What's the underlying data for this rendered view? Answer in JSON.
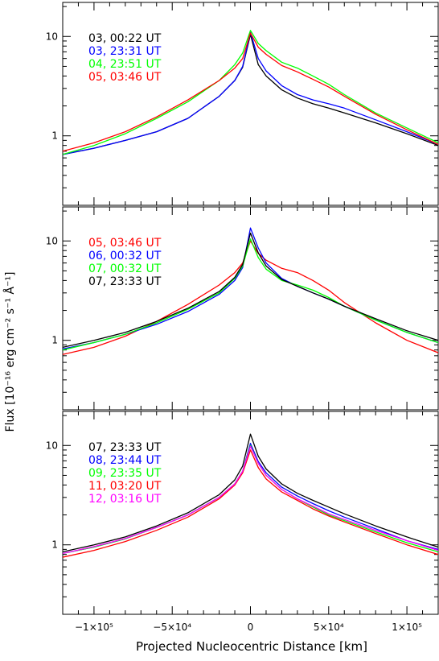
{
  "figure": {
    "ylabel": "Flux [10⁻¹⁶ erg cm⁻² s⁻¹ Å⁻¹]",
    "xlabel": "Projected Nucleocentric Distance [km]"
  },
  "x_ticks": [
    {
      "value": -100000,
      "label": "−1×10⁵"
    },
    {
      "value": -50000,
      "label": "−5×10⁴"
    },
    {
      "value": 0,
      "label": "0"
    },
    {
      "value": 50000,
      "label": "5×10⁴"
    },
    {
      "value": 100000,
      "label": "1×10⁵"
    }
  ],
  "y_ticks": [
    {
      "value": 1,
      "label": "1"
    },
    {
      "value": 10,
      "label": "10"
    }
  ],
  "colors": {
    "black": "#000000",
    "blue": "#0000ff",
    "green": "#00ff00",
    "red": "#ff0000",
    "magenta": "#ff00ff"
  },
  "chart_data": [
    {
      "type": "line",
      "yscale": "log",
      "xlim": [
        -120000,
        120000
      ],
      "ylim": [
        0.2,
        22
      ],
      "series": [
        {
          "name": "03, 00:22 UT",
          "color": "#000000",
          "x": [
            -120000,
            -100000,
            -80000,
            -60000,
            -40000,
            -20000,
            -10000,
            -5000,
            0,
            5000,
            10000,
            20000,
            30000,
            40000,
            50000,
            60000,
            80000,
            100000,
            120000
          ],
          "y": [
            0.65,
            0.75,
            0.9,
            1.1,
            1.5,
            2.5,
            3.6,
            4.9,
            10.5,
            5.2,
            4.0,
            2.9,
            2.4,
            2.1,
            1.9,
            1.7,
            1.35,
            1.05,
            0.8
          ]
        },
        {
          "name": "03, 23:31 UT",
          "color": "#0000ff",
          "x": [
            -120000,
            -100000,
            -80000,
            -60000,
            -40000,
            -20000,
            -10000,
            -5000,
            0,
            5000,
            10000,
            20000,
            30000,
            40000,
            50000,
            60000,
            80000,
            100000,
            120000
          ],
          "y": [
            0.65,
            0.75,
            0.9,
            1.1,
            1.5,
            2.5,
            3.6,
            5.0,
            11.0,
            6.0,
            4.5,
            3.2,
            2.6,
            2.3,
            2.1,
            1.9,
            1.45,
            1.1,
            0.82
          ]
        },
        {
          "name": "04, 23:51 UT",
          "color": "#00ff00",
          "x": [
            -120000,
            -100000,
            -80000,
            -60000,
            -40000,
            -20000,
            -10000,
            -5000,
            0,
            5000,
            10000,
            20000,
            30000,
            40000,
            50000,
            60000,
            80000,
            100000,
            120000
          ],
          "y": [
            0.65,
            0.8,
            1.05,
            1.5,
            2.2,
            3.6,
            5.2,
            6.8,
            11.5,
            8.5,
            7.2,
            5.5,
            4.8,
            4.0,
            3.3,
            2.6,
            1.7,
            1.2,
            0.85
          ]
        },
        {
          "name": "05, 03:46 UT",
          "color": "#ff0000",
          "x": [
            -120000,
            -100000,
            -80000,
            -60000,
            -40000,
            -20000,
            -10000,
            -5000,
            0,
            5000,
            10000,
            20000,
            30000,
            40000,
            50000,
            60000,
            80000,
            100000,
            120000
          ],
          "y": [
            0.7,
            0.85,
            1.1,
            1.55,
            2.3,
            3.6,
            4.8,
            6.0,
            10.8,
            7.8,
            6.6,
            5.1,
            4.4,
            3.7,
            3.1,
            2.5,
            1.65,
            1.15,
            0.82
          ]
        }
      ]
    },
    {
      "type": "line",
      "yscale": "log",
      "xlim": [
        -120000,
        120000
      ],
      "ylim": [
        0.2,
        22
      ],
      "series": [
        {
          "name": "05, 03:46 UT",
          "color": "#ff0000",
          "x": [
            -120000,
            -100000,
            -80000,
            -60000,
            -40000,
            -20000,
            -10000,
            -5000,
            0,
            5000,
            10000,
            20000,
            30000,
            40000,
            50000,
            60000,
            80000,
            100000,
            120000
          ],
          "y": [
            0.72,
            0.85,
            1.1,
            1.55,
            2.3,
            3.6,
            4.8,
            6.0,
            10.0,
            7.5,
            6.4,
            5.3,
            4.8,
            4.0,
            3.2,
            2.4,
            1.5,
            1.0,
            0.75
          ]
        },
        {
          "name": "06, 00:32 UT",
          "color": "#0000ff",
          "x": [
            -120000,
            -100000,
            -80000,
            -60000,
            -40000,
            -20000,
            -10000,
            -5000,
            0,
            5000,
            10000,
            20000,
            30000,
            40000,
            50000,
            60000,
            80000,
            100000,
            120000
          ],
          "y": [
            0.82,
            0.95,
            1.15,
            1.45,
            1.95,
            2.9,
            4.0,
            5.4,
            13.5,
            8.5,
            6.0,
            4.2,
            3.5,
            3.0,
            2.6,
            2.2,
            1.6,
            1.2,
            0.95
          ]
        },
        {
          "name": "07, 00:32 UT",
          "color": "#00ff00",
          "x": [
            -120000,
            -100000,
            -80000,
            -60000,
            -40000,
            -20000,
            -10000,
            -5000,
            0,
            5000,
            10000,
            20000,
            30000,
            40000,
            50000,
            60000,
            80000,
            100000,
            120000
          ],
          "y": [
            0.8,
            0.95,
            1.15,
            1.5,
            2.05,
            3.0,
            4.2,
            5.6,
            10.5,
            6.8,
            5.2,
            4.0,
            3.6,
            3.2,
            2.7,
            2.2,
            1.6,
            1.2,
            0.95
          ]
        },
        {
          "name": "07, 23:33 UT",
          "color": "#000000",
          "x": [
            -120000,
            -100000,
            -80000,
            -60000,
            -40000,
            -20000,
            -10000,
            -5000,
            0,
            5000,
            10000,
            20000,
            30000,
            40000,
            50000,
            60000,
            80000,
            100000,
            120000
          ],
          "y": [
            0.85,
            1.0,
            1.2,
            1.55,
            2.1,
            3.1,
            4.3,
            5.8,
            12.0,
            7.6,
            5.6,
            4.1,
            3.5,
            3.0,
            2.6,
            2.2,
            1.65,
            1.25,
            1.0
          ]
        }
      ]
    },
    {
      "type": "line",
      "yscale": "log",
      "xlim": [
        -120000,
        120000
      ],
      "ylim": [
        0.2,
        22
      ],
      "series": [
        {
          "name": "07, 23:33 UT",
          "color": "#000000",
          "x": [
            -120000,
            -100000,
            -80000,
            -60000,
            -40000,
            -20000,
            -10000,
            -5000,
            0,
            5000,
            10000,
            20000,
            30000,
            40000,
            50000,
            60000,
            80000,
            100000,
            120000
          ],
          "y": [
            0.85,
            1.0,
            1.2,
            1.55,
            2.1,
            3.2,
            4.5,
            6.2,
            13.0,
            7.8,
            5.8,
            4.1,
            3.3,
            2.8,
            2.4,
            2.05,
            1.55,
            1.2,
            0.95
          ]
        },
        {
          "name": "08, 23:44 UT",
          "color": "#0000ff",
          "x": [
            -120000,
            -100000,
            -80000,
            -60000,
            -40000,
            -20000,
            -10000,
            -5000,
            0,
            5000,
            10000,
            20000,
            30000,
            40000,
            50000,
            60000,
            80000,
            100000,
            120000
          ],
          "y": [
            0.82,
            0.95,
            1.15,
            1.5,
            2.0,
            3.0,
            4.1,
            5.5,
            10.5,
            6.9,
            5.3,
            3.8,
            3.1,
            2.6,
            2.2,
            1.9,
            1.45,
            1.1,
            0.9
          ]
        },
        {
          "name": "09, 23:35 UT",
          "color": "#00ff00",
          "x": [
            -120000,
            -100000,
            -80000,
            -60000,
            -40000,
            -20000,
            -10000,
            -5000,
            0,
            5000,
            10000,
            20000,
            30000,
            40000,
            50000,
            60000,
            80000,
            100000,
            120000
          ],
          "y": [
            0.82,
            0.95,
            1.15,
            1.5,
            2.0,
            3.0,
            4.1,
            5.5,
            10.0,
            6.6,
            5.0,
            3.6,
            2.9,
            2.4,
            2.0,
            1.75,
            1.35,
            1.05,
            0.85
          ]
        },
        {
          "name": "11, 03:20 UT",
          "color": "#ff0000",
          "x": [
            -120000,
            -100000,
            -80000,
            -60000,
            -40000,
            -20000,
            -10000,
            -5000,
            0,
            5000,
            10000,
            20000,
            30000,
            40000,
            50000,
            60000,
            80000,
            100000,
            120000
          ],
          "y": [
            0.75,
            0.88,
            1.08,
            1.4,
            1.9,
            2.9,
            4.0,
            5.3,
            9.0,
            6.0,
            4.6,
            3.4,
            2.8,
            2.3,
            1.95,
            1.7,
            1.3,
            1.0,
            0.8
          ]
        },
        {
          "name": "12, 03:16 UT",
          "color": "#ff00ff",
          "x": [
            -120000,
            -100000,
            -80000,
            -60000,
            -40000,
            -20000,
            -10000,
            -5000,
            0,
            5000,
            10000,
            20000,
            30000,
            40000,
            50000,
            60000,
            80000,
            100000,
            120000
          ],
          "y": [
            0.82,
            0.96,
            1.16,
            1.5,
            2.0,
            3.0,
            4.1,
            5.5,
            9.8,
            6.6,
            5.0,
            3.6,
            2.9,
            2.45,
            2.05,
            1.8,
            1.4,
            1.1,
            0.88
          ]
        }
      ]
    }
  ]
}
